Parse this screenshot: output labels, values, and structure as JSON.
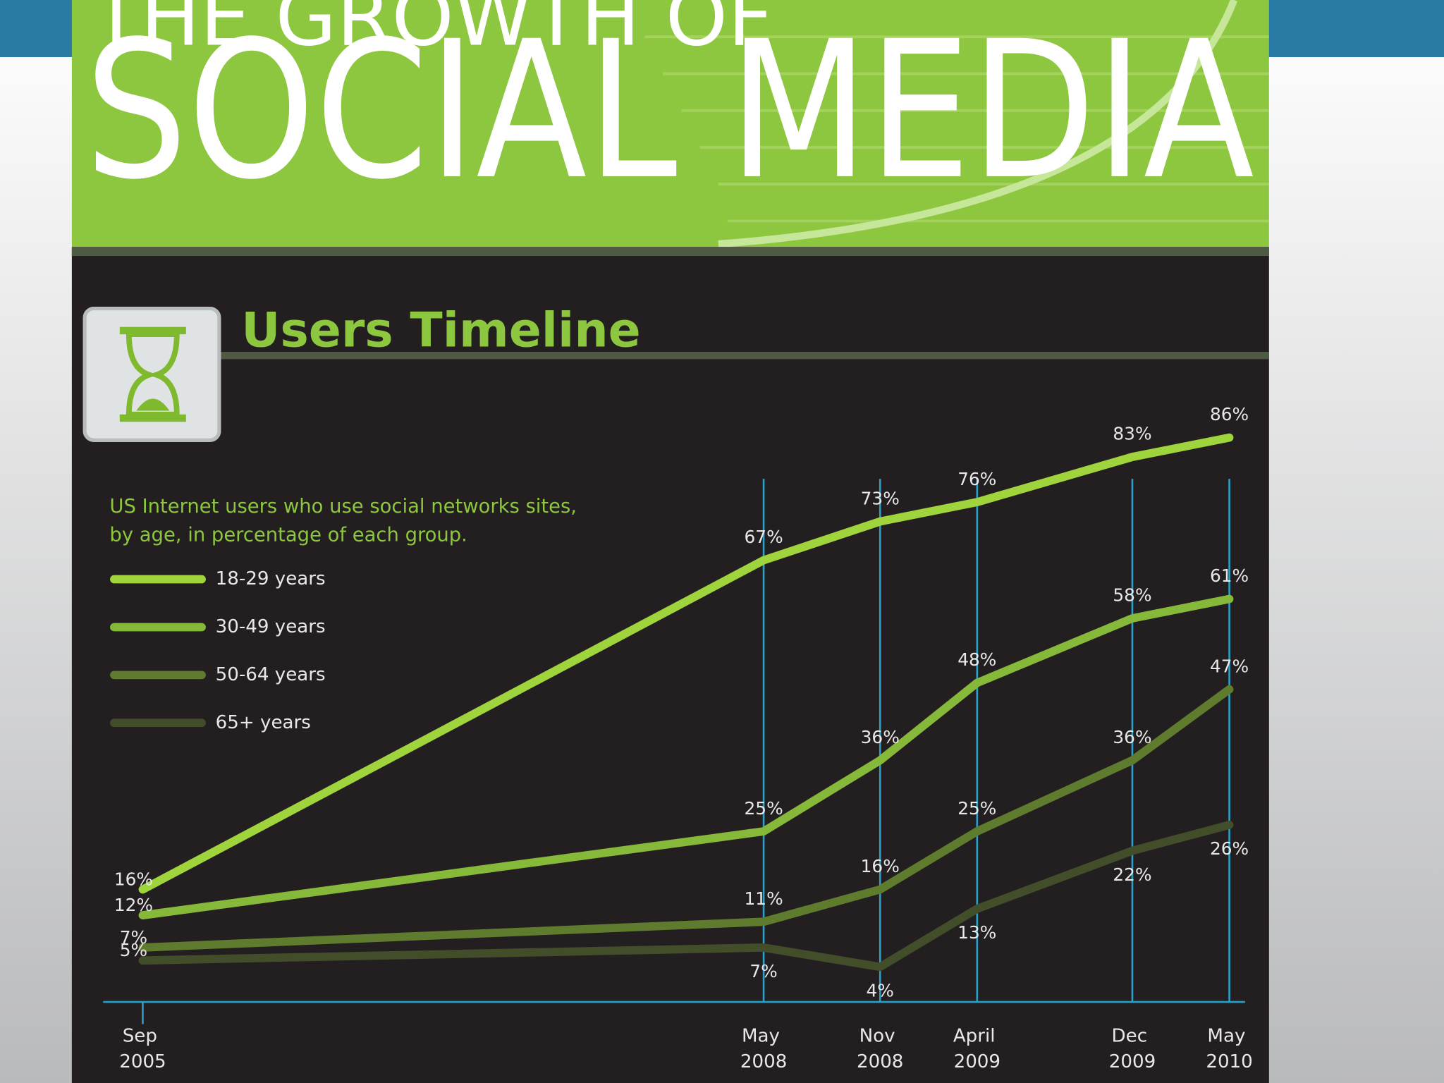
{
  "header": {
    "title_top": "THE GROWTH OF",
    "title_main": "SOCIAL MEDIA"
  },
  "chart_data": {
    "type": "line",
    "title": "Users Timeline",
    "subtitle": [
      "US Internet users who use social networks sites,",
      "by age, in percentage of each group."
    ],
    "x": [
      "2005-09",
      "2008-05",
      "2008-11",
      "2009-04",
      "2009-12",
      "2010-05"
    ],
    "xticks": [
      {
        "value": "2005-09",
        "label": "Sep 2005"
      },
      {
        "value": "2008-05",
        "label": "May 2008"
      },
      {
        "value": "2008-11",
        "label": "Nov 2008"
      },
      {
        "value": "2009-04",
        "label": "April 2009"
      },
      {
        "value": "2009-12",
        "label": "Dec 2009"
      },
      {
        "value": "2010-05",
        "label": "May 2010"
      }
    ],
    "series": [
      {
        "name": "18-29 years",
        "color": "#9fd43c",
        "values": [
          16,
          67,
          73,
          76,
          83,
          86
        ],
        "value_labels": [
          "16%",
          "67%",
          "73%",
          "76%",
          "83%",
          "86%"
        ]
      },
      {
        "name": "30-49 years",
        "color": "#86b83a",
        "values": [
          12,
          25,
          36,
          48,
          58,
          61
        ],
        "value_labels": [
          "12%",
          "25%",
          "36%",
          "48%",
          "58%",
          "61%"
        ]
      },
      {
        "name": "50-64 years",
        "color": "#5f7b2e",
        "values": [
          7,
          11,
          16,
          25,
          36,
          47
        ],
        "value_labels": [
          "7%",
          "11%",
          "16%",
          "25%",
          "36%",
          "47%"
        ]
      },
      {
        "name": "65+ years",
        "color": "#424d29",
        "values": [
          5,
          7,
          4,
          13,
          22,
          26
        ],
        "value_labels": [
          "5%",
          "7%",
          "4%",
          "13%",
          "22%",
          "26%"
        ]
      }
    ]
  }
}
